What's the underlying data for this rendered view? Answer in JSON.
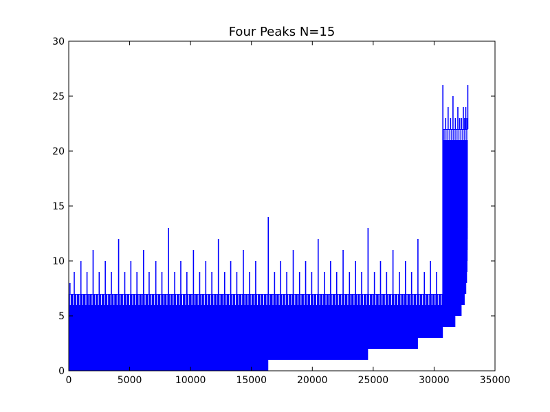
{
  "chart_data": {
    "type": "line",
    "title": "Four Peaks N=15",
    "xlabel": "",
    "ylabel": "",
    "xlim": [
      0,
      35000
    ],
    "ylim": [
      0,
      30
    ],
    "grid": false,
    "color": "#0000ff",
    "x_ticks": [
      0,
      5000,
      10000,
      15000,
      20000,
      25000,
      30000,
      35000
    ],
    "y_ticks": [
      0,
      5,
      10,
      15,
      20,
      25,
      30
    ],
    "x_tick_labels": [
      "0",
      "5000",
      "10000",
      "15000",
      "20000",
      "25000",
      "30000",
      "35000"
    ],
    "y_tick_labels": [
      "0",
      "5",
      "10",
      "15",
      "20",
      "25",
      "30"
    ],
    "series": [
      {
        "x": [
          0,
          16384,
          16384,
          24576,
          24576,
          28672,
          28672,
          30720,
          30720,
          31744,
          31744,
          32256,
          32256,
          32512,
          32512,
          32640,
          32640,
          32704,
          32704,
          32736,
          32736,
          32752,
          32752,
          32760,
          32760,
          32764,
          32764,
          32766,
          32766,
          32767
        ],
        "y": [
          0,
          0,
          1,
          1,
          2,
          2,
          3,
          3,
          4,
          4,
          5,
          5,
          6,
          6,
          7,
          7,
          8,
          8,
          9,
          9,
          10,
          10,
          11,
          11,
          12,
          12,
          13,
          13,
          14,
          14
        ],
        "role": "lower_envelope"
      },
      {
        "x": [
          0,
          30720,
          30720,
          32767
        ],
        "y": [
          7,
          7,
          22,
          22
        ],
        "role": "dense_band_top"
      },
      {
        "x": [
          100,
          450,
          1000,
          1500,
          2000,
          2500,
          3000,
          3500,
          4096,
          4600,
          5100,
          5600,
          6144,
          6600,
          7150,
          7650,
          8192,
          8700,
          9200,
          9700,
          10240,
          10750,
          11250,
          11750,
          12288,
          12800,
          13300,
          13800,
          14336,
          14850,
          15350,
          16384,
          16900,
          17400,
          17900,
          18432,
          18950,
          19450,
          19950,
          20480,
          21000,
          21500,
          22000,
          22528,
          23050,
          23550,
          24050,
          24576,
          25100,
          25600,
          26100,
          26624,
          27150,
          27650,
          28150,
          28672,
          29200,
          29700,
          30200,
          30720,
          30950,
          31150,
          31350,
          31550,
          31744,
          31950,
          32100,
          32256,
          32400,
          32512,
          32600,
          32700,
          32767
        ],
        "y": [
          8,
          9,
          10,
          9,
          11,
          9,
          10,
          9,
          12,
          9,
          10,
          9,
          11,
          9,
          10,
          9,
          13,
          9,
          10,
          9,
          11,
          9,
          10,
          9,
          12,
          9,
          10,
          9,
          11,
          9,
          10,
          14,
          9,
          10,
          9,
          11,
          9,
          10,
          9,
          12,
          9,
          10,
          9,
          11,
          9,
          10,
          9,
          13,
          9,
          10,
          9,
          11,
          9,
          10,
          9,
          12,
          9,
          10,
          9,
          26,
          23,
          24,
          23,
          25,
          23,
          24,
          23,
          23,
          24,
          23,
          24,
          23,
          26
        ],
        "role": "peaks"
      }
    ]
  }
}
